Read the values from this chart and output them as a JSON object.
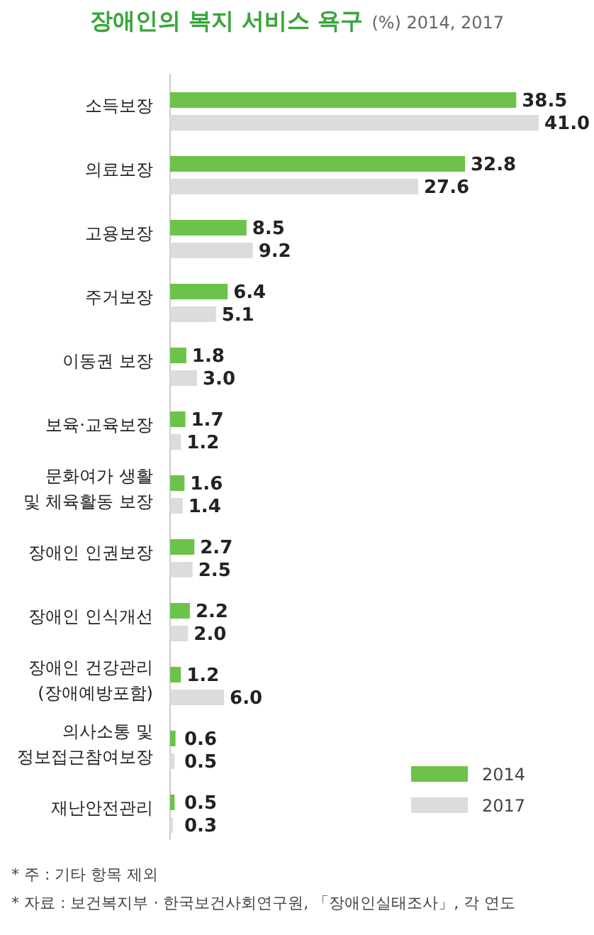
{
  "chart_data": {
    "type": "bar",
    "orientation": "horizontal",
    "title": "장애인의 복지 서비스 욕구",
    "subtitle": "(%) 2014, 2017",
    "categories": [
      "소득보장",
      "의료보장",
      "고용보장",
      "주거보장",
      "이동권 보장",
      "보육·교육보장",
      "문화여가 생활\n및 체육활동 보장",
      "장애인 인권보장",
      "장애인 인식개선",
      "장애인 건강관리\n(장애예방포함)",
      "의사소통 및\n정보접근참여보장",
      "재난안전관리"
    ],
    "series": [
      {
        "name": "2014",
        "color": "#6cc24a",
        "values": [
          38.5,
          32.8,
          8.5,
          6.4,
          1.8,
          1.7,
          1.6,
          2.7,
          2.2,
          1.2,
          0.6,
          0.5
        ],
        "value_labels": [
          "38.5",
          "32.8",
          "8.5",
          "6.4",
          "1.8",
          "1.7",
          "1.6",
          "2.7",
          "2.2",
          "1.2",
          "0.6",
          "0.5"
        ]
      },
      {
        "name": "2017",
        "color": "#dcdcdc",
        "values": [
          41.0,
          27.6,
          9.2,
          5.1,
          3.0,
          1.2,
          1.4,
          2.5,
          2.0,
          6.0,
          0.5,
          0.3
        ],
        "value_labels": [
          "41.0",
          "27.6",
          "9.2",
          "5.1",
          "3.0",
          "1.2",
          "1.4",
          "2.5",
          "2.0",
          "6.0",
          "0.5",
          "0.3"
        ]
      }
    ],
    "legend": "bottom right",
    "annotations": [
      "* 주 : 기타 항목 제외",
      "* 자료 : 보건복지부 · 한국보건사회연구원, 「장애인실태조사」, 각 연도"
    ]
  }
}
